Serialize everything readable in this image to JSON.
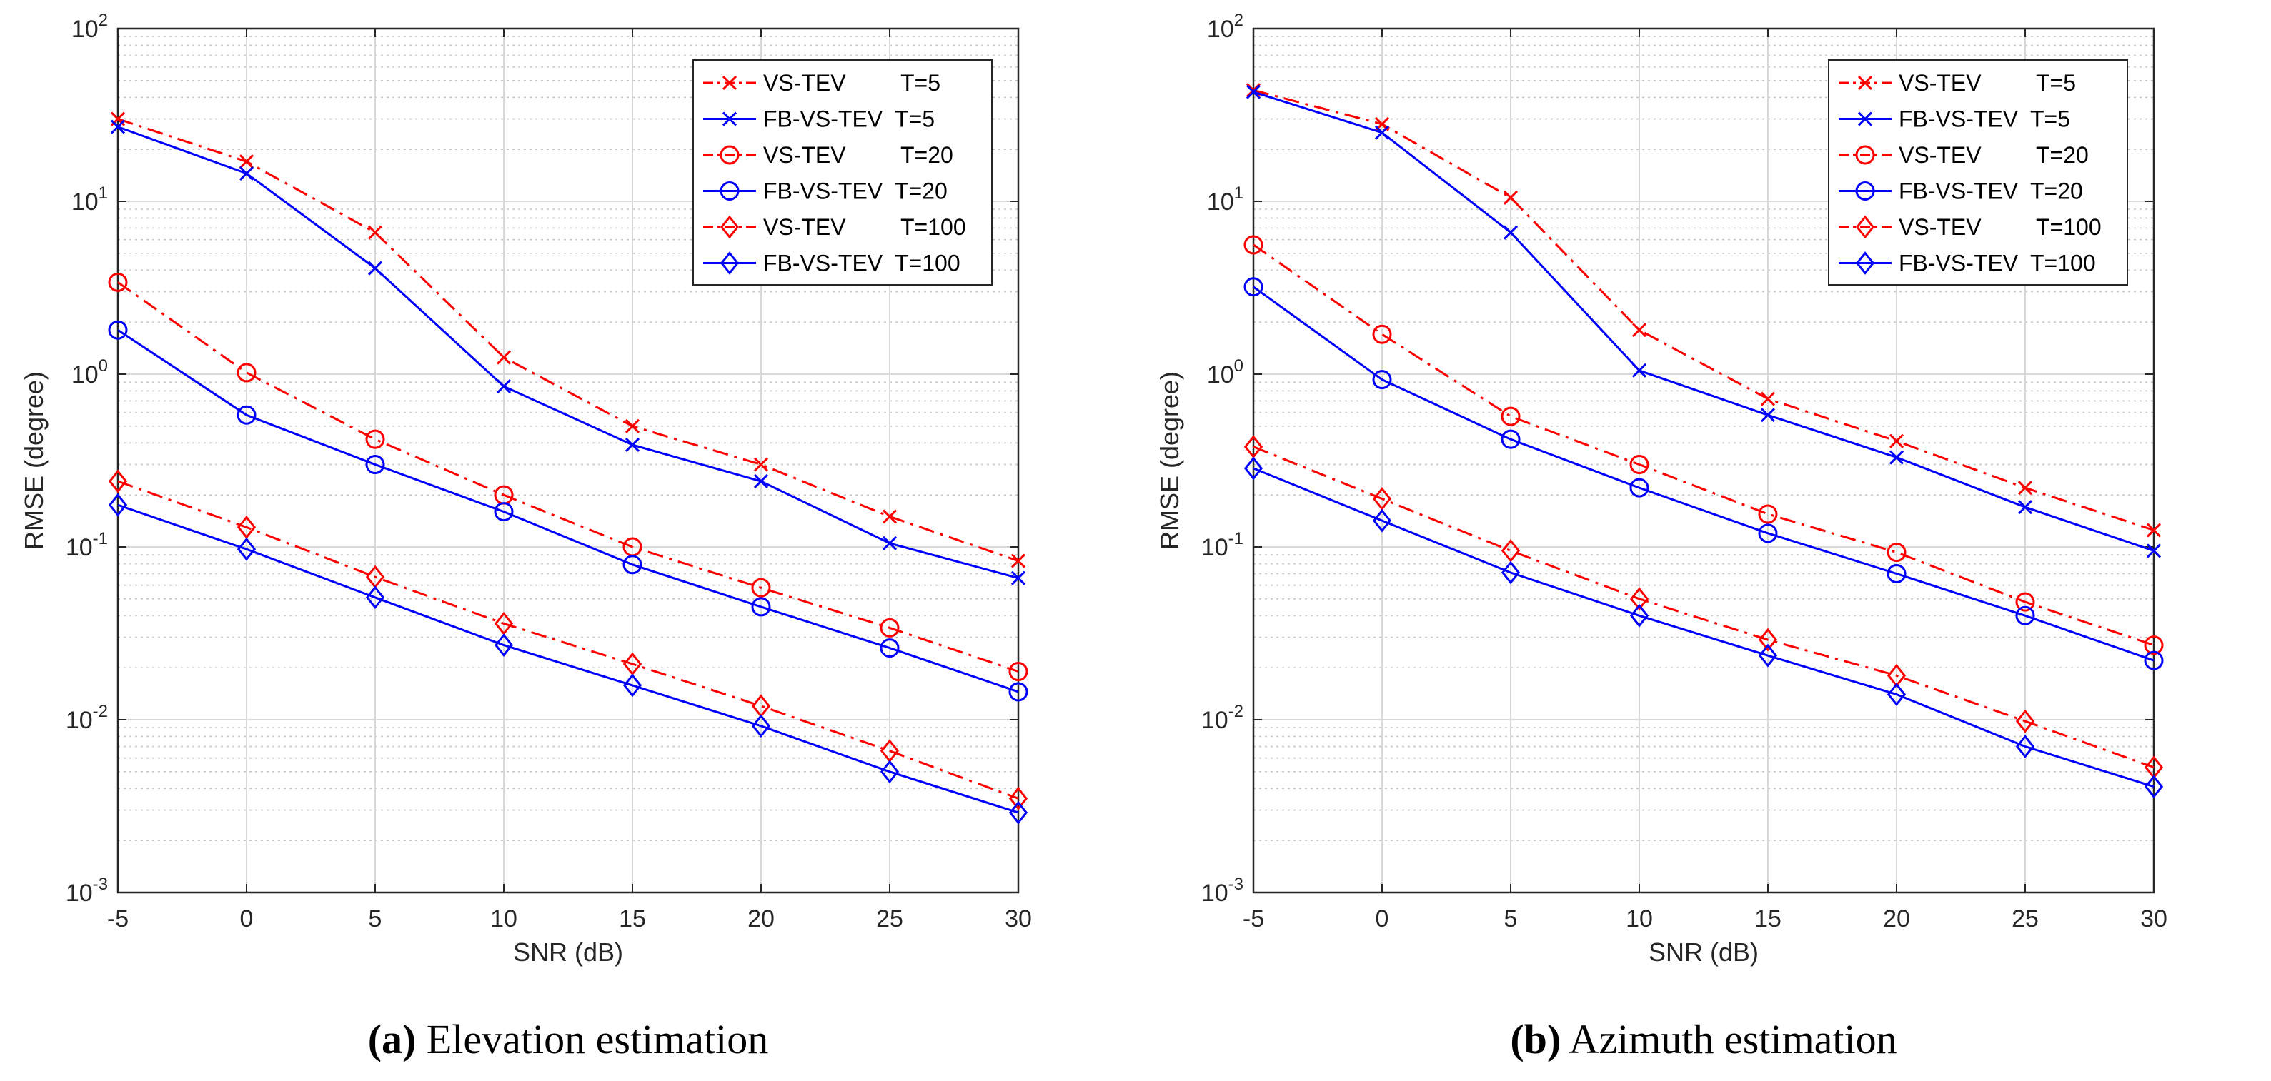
{
  "colors": {
    "red": "#ff0000",
    "blue": "#0000ff",
    "grid": "#d9d9d9",
    "minor_grid": "#c8c8c8",
    "axis": "#262626"
  },
  "chart_data": [
    {
      "type": "line",
      "panel_label": "(a)",
      "caption": "Elevation estimation",
      "xlabel": "SNR (dB)",
      "ylabel": "RMSE (degree)",
      "xscale": "linear",
      "yscale": "log",
      "xlim": [
        -5,
        30
      ],
      "ylim": [
        0.001,
        100
      ],
      "grid": true,
      "legend_location": "top-right",
      "x": [
        -5,
        0,
        5,
        10,
        15,
        20,
        25,
        30
      ],
      "x_ticks": [
        "-5",
        "0",
        "5",
        "10",
        "15",
        "20",
        "25",
        "30"
      ],
      "y_ticks": [
        {
          "base": "10",
          "exp": "2",
          "value": 100
        },
        {
          "base": "10",
          "exp": "1",
          "value": 10
        },
        {
          "base": "10",
          "exp": "0",
          "value": 1
        },
        {
          "base": "10",
          "exp": "-1",
          "value": 0.1
        },
        {
          "base": "10",
          "exp": "-2",
          "value": 0.01
        },
        {
          "base": "10",
          "exp": "-3",
          "value": 0.001
        }
      ],
      "series": [
        {
          "name": "VS-TEV",
          "param": "T=5",
          "color": "#ff0000",
          "style": "dashdot",
          "marker": "x",
          "values": [
            30,
            17,
            6.6,
            1.25,
            0.5,
            0.3,
            0.15,
            0.083
          ]
        },
        {
          "name": "FB-VS-TEV",
          "param": "T=5",
          "color": "#0000ff",
          "style": "solid",
          "marker": "x",
          "values": [
            27,
            14.5,
            4.1,
            0.85,
            0.39,
            0.24,
            0.105,
            0.066
          ]
        },
        {
          "name": "VS-TEV",
          "param": "T=20",
          "color": "#ff0000",
          "style": "dashdot",
          "marker": "circle",
          "values": [
            3.4,
            1.02,
            0.42,
            0.2,
            0.1,
            0.058,
            0.034,
            0.019
          ]
        },
        {
          "name": "FB-VS-TEV",
          "param": "T=20",
          "color": "#0000ff",
          "style": "solid",
          "marker": "circle",
          "values": [
            1.8,
            0.58,
            0.3,
            0.16,
            0.079,
            0.045,
            0.026,
            0.0145
          ]
        },
        {
          "name": "VS-TEV",
          "param": "T=100",
          "color": "#ff0000",
          "style": "dashdot",
          "marker": "diamond",
          "values": [
            0.24,
            0.13,
            0.067,
            0.036,
            0.021,
            0.012,
            0.0066,
            0.0035
          ]
        },
        {
          "name": "FB-VS-TEV",
          "param": "T=100",
          "color": "#0000ff",
          "style": "solid",
          "marker": "diamond",
          "values": [
            0.175,
            0.097,
            0.051,
            0.027,
            0.0158,
            0.0092,
            0.005,
            0.0029
          ]
        }
      ]
    },
    {
      "type": "line",
      "panel_label": "(b)",
      "caption": "Azimuth estimation",
      "xlabel": "SNR (dB)",
      "ylabel": "RMSE (degree)",
      "xscale": "linear",
      "yscale": "log",
      "xlim": [
        -5,
        30
      ],
      "ylim": [
        0.001,
        100
      ],
      "grid": true,
      "legend_location": "top-right",
      "x": [
        -5,
        0,
        5,
        10,
        15,
        20,
        25,
        30
      ],
      "x_ticks": [
        "-5",
        "0",
        "5",
        "10",
        "15",
        "20",
        "25",
        "30"
      ],
      "y_ticks": [
        {
          "base": "10",
          "exp": "2",
          "value": 100
        },
        {
          "base": "10",
          "exp": "1",
          "value": 10
        },
        {
          "base": "10",
          "exp": "0",
          "value": 1
        },
        {
          "base": "10",
          "exp": "-1",
          "value": 0.1
        },
        {
          "base": "10",
          "exp": "-2",
          "value": 0.01
        },
        {
          "base": "10",
          "exp": "-3",
          "value": 0.001
        }
      ],
      "series": [
        {
          "name": "VS-TEV",
          "param": "T=5",
          "color": "#ff0000",
          "style": "dashdot",
          "marker": "x",
          "values": [
            44,
            28,
            10.5,
            1.8,
            0.72,
            0.41,
            0.22,
            0.125
          ]
        },
        {
          "name": "FB-VS-TEV",
          "param": "T=5",
          "color": "#0000ff",
          "style": "solid",
          "marker": "x",
          "values": [
            43,
            25,
            6.6,
            1.05,
            0.58,
            0.33,
            0.17,
            0.095
          ]
        },
        {
          "name": "VS-TEV",
          "param": "T=20",
          "color": "#ff0000",
          "style": "dashdot",
          "marker": "circle",
          "values": [
            5.6,
            1.7,
            0.57,
            0.3,
            0.155,
            0.093,
            0.048,
            0.027
          ]
        },
        {
          "name": "FB-VS-TEV",
          "param": "T=20",
          "color": "#0000ff",
          "style": "solid",
          "marker": "circle",
          "values": [
            3.2,
            0.93,
            0.42,
            0.22,
            0.12,
            0.07,
            0.04,
            0.022
          ]
        },
        {
          "name": "VS-TEV",
          "param": "T=100",
          "color": "#ff0000",
          "style": "dashdot",
          "marker": "diamond",
          "values": [
            0.38,
            0.19,
            0.095,
            0.05,
            0.029,
            0.018,
            0.0098,
            0.0053
          ]
        },
        {
          "name": "FB-VS-TEV",
          "param": "T=100",
          "color": "#0000ff",
          "style": "solid",
          "marker": "diamond",
          "values": [
            0.285,
            0.142,
            0.071,
            0.04,
            0.0235,
            0.014,
            0.007,
            0.0041
          ]
        }
      ]
    }
  ]
}
